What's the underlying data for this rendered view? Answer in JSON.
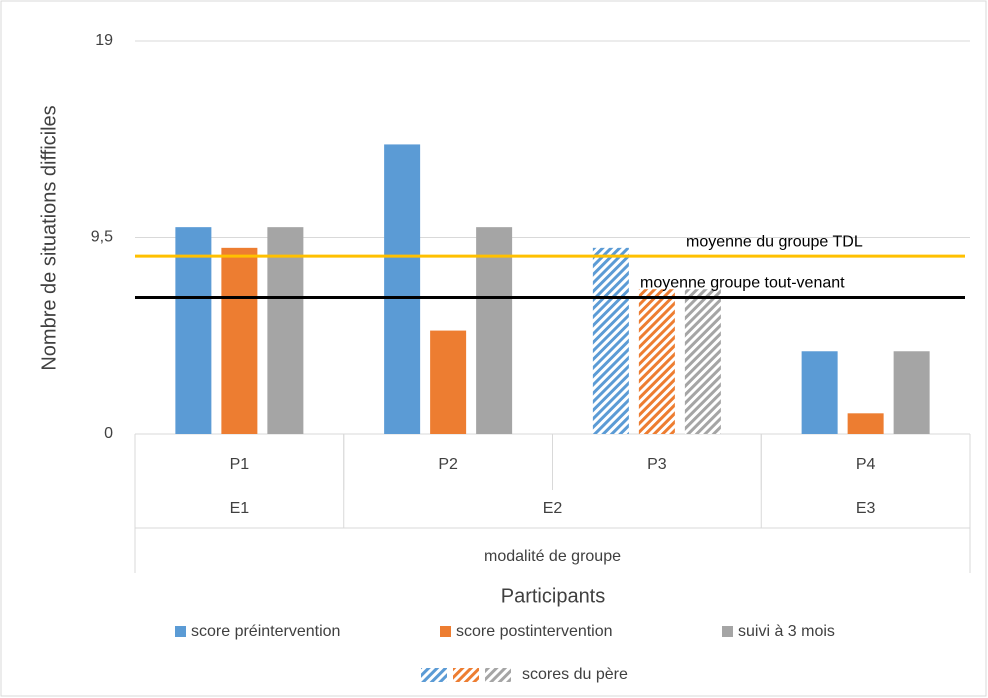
{
  "chart_data": {
    "type": "bar",
    "y_label": "Nombre de situations difficiles",
    "x_label": "Participants",
    "categories": [
      "P1",
      "P2",
      "P3",
      "P4"
    ],
    "groups": [
      {
        "label": "E1",
        "span": 1
      },
      {
        "label": "E2",
        "span": 2
      },
      {
        "label": "E3",
        "span": 1
      }
    ],
    "outer_group": "modalité de groupe",
    "hatched": [
      false,
      false,
      true,
      false
    ],
    "hatched_legend": "scores du père",
    "series": [
      {
        "name": "score préintervention",
        "color": "#5b9bd5",
        "values": [
          10,
          14,
          9,
          4
        ]
      },
      {
        "name": "score postintervention",
        "color": "#ed7d31",
        "values": [
          9,
          5,
          7,
          1
        ]
      },
      {
        "name": "suivi à 3 mois",
        "color": "#a5a5a5",
        "values": [
          10,
          10,
          7,
          4
        ]
      }
    ],
    "reference_lines": [
      {
        "label": "moyenne du groupe TDL",
        "value": 8.6,
        "color": "#ffc000"
      },
      {
        "label": "moyenne groupe tout-venant",
        "value": 6.6,
        "color": "#000000"
      }
    ],
    "ylim": [
      0,
      19
    ],
    "yticks": [
      0,
      {
        "value": 9.5,
        "label": "9,5"
      },
      19
    ],
    "grid": true,
    "legend": "bottom"
  }
}
